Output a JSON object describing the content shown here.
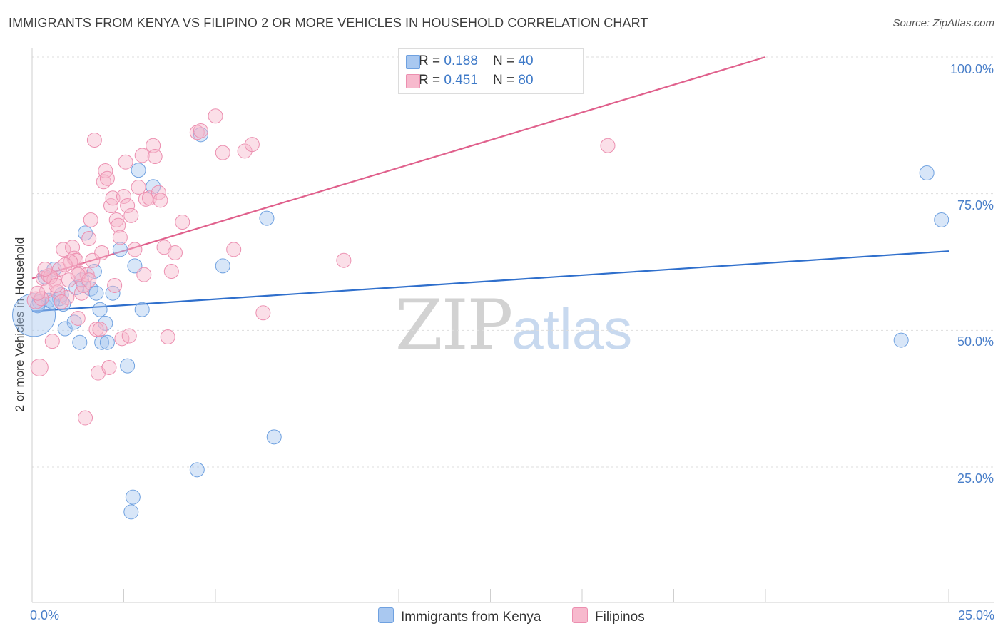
{
  "title": "IMMIGRANTS FROM KENYA VS FILIPINO 2 OR MORE VEHICLES IN HOUSEHOLD CORRELATION CHART",
  "source": "Source: ZipAtlas.com",
  "watermark": {
    "zip": "ZIP",
    "atlas": "atlas"
  },
  "stats": [
    {
      "r_label": "R = ",
      "r_value": "0.188",
      "n_label": "N = ",
      "n_value": "40",
      "color": "#a9c8f0"
    },
    {
      "r_label": "R = ",
      "r_value": "0.451",
      "n_label": "N = ",
      "n_value": "80",
      "color": "#f7b9cd"
    }
  ],
  "legend": [
    {
      "label": "Immigrants from Kenya",
      "color": "#a9c8f0"
    },
    {
      "label": "Filipinos",
      "color": "#f7b9cd"
    }
  ],
  "chart_data": {
    "type": "scatter",
    "title": "IMMIGRANTS FROM KENYA VS FILIPINO 2 OR MORE VEHICLES IN HOUSEHOLD CORRELATION CHART",
    "xlabel": "",
    "ylabel": "2 or more Vehicles in Household",
    "xlim": [
      0,
      25
    ],
    "ylim": [
      0,
      100
    ],
    "x_tick_labels": [
      "0.0%",
      "25.0%"
    ],
    "y_ticks": [
      25,
      50,
      75,
      100
    ],
    "y_tick_labels": [
      "25.0%",
      "50.0%",
      "75.0%",
      "100.0%"
    ],
    "grid": true,
    "series": [
      {
        "name": "Immigrants from Kenya",
        "color": "#6fa1e0",
        "fill": "#a9c8f0",
        "trend": {
          "x0": 0,
          "y0": 53.5,
          "x1": 25,
          "y1": 64.5,
          "color": "#2f6fcc"
        },
        "points": [
          [
            0.05,
            52.8,
            30
          ],
          [
            0.2,
            55.2,
            10
          ],
          [
            0.45,
            55.5,
            10
          ],
          [
            0.85,
            54.8,
            10
          ],
          [
            0.75,
            55.8,
            10
          ],
          [
            0.6,
            61.2,
            10
          ],
          [
            0.8,
            56.5,
            10
          ],
          [
            0.9,
            50.3,
            10
          ],
          [
            1.2,
            57.8,
            10
          ],
          [
            1.35,
            59.2,
            10
          ],
          [
            1.45,
            67.8,
            10
          ],
          [
            1.6,
            57.6,
            10
          ],
          [
            1.7,
            60.8,
            10
          ],
          [
            1.75,
            56.8,
            10
          ],
          [
            1.85,
            53.8,
            10
          ],
          [
            1.9,
            47.8,
            10
          ],
          [
            2.0,
            51.3,
            10
          ],
          [
            2.05,
            47.8,
            10
          ],
          [
            2.2,
            56.8,
            10
          ],
          [
            2.4,
            64.8,
            10
          ],
          [
            2.6,
            43.5,
            10
          ],
          [
            2.7,
            16.8,
            10
          ],
          [
            2.75,
            19.5,
            10
          ],
          [
            2.9,
            79.3,
            10
          ],
          [
            3.0,
            53.8,
            10
          ],
          [
            3.3,
            76.3,
            10
          ],
          [
            4.5,
            24.5,
            10
          ],
          [
            4.6,
            85.8,
            10
          ],
          [
            5.2,
            61.8,
            10
          ],
          [
            6.4,
            70.5,
            10
          ],
          [
            6.6,
            30.5,
            10
          ],
          [
            0.15,
            54.5,
            10
          ],
          [
            0.35,
            59.8,
            10
          ],
          [
            0.55,
            55.2,
            10
          ],
          [
            1.3,
            47.8,
            10
          ],
          [
            2.8,
            61.8,
            10
          ],
          [
            1.15,
            51.5,
            10
          ],
          [
            23.7,
            48.2,
            10
          ],
          [
            24.4,
            78.8,
            10
          ],
          [
            24.8,
            70.2,
            10
          ]
        ]
      },
      {
        "name": "Filipinos",
        "color": "#ec8fb0",
        "fill": "#f7b9cd",
        "trend": {
          "x0": 0,
          "y0": 59.5,
          "x1": 20,
          "y1": 100,
          "color": "#e0608c"
        },
        "points": [
          [
            0.1,
            55.5,
            12
          ],
          [
            0.2,
            43.2,
            12
          ],
          [
            0.3,
            59.5,
            10
          ],
          [
            0.45,
            60.0,
            10
          ],
          [
            0.55,
            48.0,
            10
          ],
          [
            0.6,
            59.2,
            10
          ],
          [
            0.75,
            61.2,
            10
          ],
          [
            0.85,
            64.8,
            10
          ],
          [
            0.95,
            56.0,
            10
          ],
          [
            1.0,
            59.2,
            10
          ],
          [
            1.1,
            65.2,
            10
          ],
          [
            1.15,
            63.2,
            10
          ],
          [
            1.2,
            62.8,
            10
          ],
          [
            1.25,
            52.2,
            10
          ],
          [
            1.3,
            60.5,
            10
          ],
          [
            1.35,
            56.8,
            10
          ],
          [
            1.4,
            58.2,
            10
          ],
          [
            1.5,
            60.2,
            10
          ],
          [
            1.55,
            66.8,
            10
          ],
          [
            1.6,
            70.2,
            10
          ],
          [
            1.7,
            84.8,
            10
          ],
          [
            1.75,
            50.2,
            10
          ],
          [
            1.8,
            42.2,
            10
          ],
          [
            1.9,
            64.2,
            10
          ],
          [
            1.95,
            77.2,
            10
          ],
          [
            2.0,
            79.2,
            10
          ],
          [
            2.05,
            77.8,
            10
          ],
          [
            2.15,
            72.8,
            10
          ],
          [
            2.2,
            74.2,
            10
          ],
          [
            2.3,
            70.2,
            10
          ],
          [
            2.35,
            69.2,
            10
          ],
          [
            2.4,
            67.0,
            10
          ],
          [
            2.5,
            74.5,
            10
          ],
          [
            2.55,
            80.8,
            10
          ],
          [
            2.6,
            72.8,
            10
          ],
          [
            2.7,
            71.0,
            10
          ],
          [
            2.8,
            64.8,
            10
          ],
          [
            2.9,
            76.2,
            10
          ],
          [
            3.0,
            82.0,
            10
          ],
          [
            3.1,
            74.0,
            10
          ],
          [
            3.2,
            74.2,
            10
          ],
          [
            3.3,
            83.8,
            10
          ],
          [
            3.35,
            81.8,
            10
          ],
          [
            3.45,
            75.2,
            10
          ],
          [
            3.5,
            73.8,
            10
          ],
          [
            3.6,
            65.2,
            10
          ],
          [
            3.7,
            48.8,
            10
          ],
          [
            3.8,
            60.8,
            10
          ],
          [
            3.9,
            64.2,
            10
          ],
          [
            4.1,
            69.8,
            10
          ],
          [
            4.5,
            86.2,
            10
          ],
          [
            4.6,
            86.5,
            10
          ],
          [
            5.0,
            89.2,
            10
          ],
          [
            5.2,
            82.5,
            10
          ],
          [
            5.5,
            64.8,
            10
          ],
          [
            5.8,
            82.8,
            10
          ],
          [
            6.0,
            84.0,
            10
          ],
          [
            6.3,
            53.2,
            10
          ],
          [
            1.05,
            62.5,
            10
          ],
          [
            1.45,
            34.0,
            10
          ],
          [
            1.65,
            62.8,
            10
          ],
          [
            1.85,
            50.2,
            10
          ],
          [
            2.1,
            43.2,
            10
          ],
          [
            2.25,
            58.2,
            10
          ],
          [
            2.45,
            48.5,
            10
          ],
          [
            2.65,
            49.0,
            10
          ],
          [
            0.4,
            57.2,
            10
          ],
          [
            0.5,
            59.8,
            10
          ],
          [
            0.7,
            57.0,
            10
          ],
          [
            0.8,
            55.2,
            10
          ],
          [
            0.9,
            62.0,
            10
          ],
          [
            0.35,
            61.2,
            10
          ],
          [
            0.65,
            58.2,
            10
          ],
          [
            0.25,
            55.8,
            10
          ],
          [
            1.25,
            60.2,
            10
          ],
          [
            1.55,
            59.2,
            10
          ],
          [
            8.5,
            62.8,
            10
          ],
          [
            15.7,
            83.8,
            10
          ],
          [
            3.05,
            60.2,
            10
          ],
          [
            0.15,
            56.8,
            10
          ]
        ]
      }
    ]
  }
}
